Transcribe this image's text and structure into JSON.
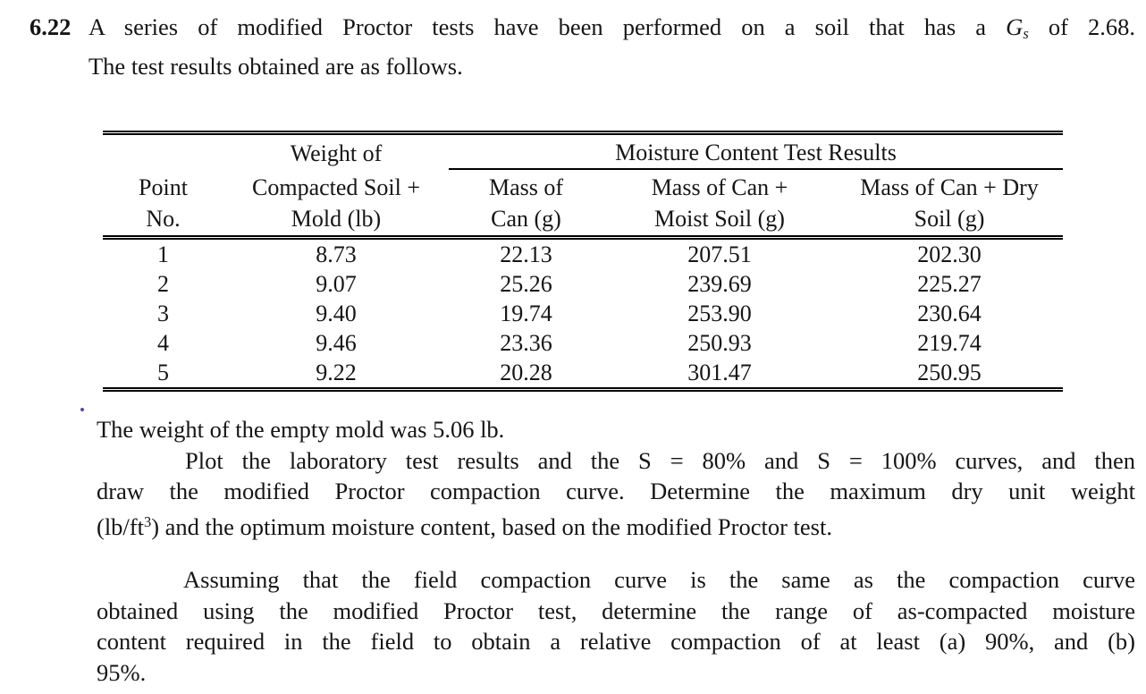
{
  "problem": {
    "number": "6.22",
    "heading_line1": {
      "pre": "A series of modified Proctor tests have been performed on a soil that has a ",
      "symbol": "G",
      "symbol_sub": "s",
      "post": " of 2.68."
    },
    "heading_line2": "The test results obtained are as follows."
  },
  "table": {
    "spanner": "Moisture Content Test Results",
    "header_row1_col2": "Weight of",
    "header_row2": [
      "Point",
      "Compacted Soil +",
      "Mass of",
      "Mass of Can +",
      "Mass of Can + Dry"
    ],
    "header_row3": [
      "No.",
      "Mold (lb)",
      "Can (g)",
      "Moist Soil (g)",
      "Soil (g)"
    ],
    "rows": [
      [
        "1",
        "8.73",
        "22.13",
        "207.51",
        "202.30"
      ],
      [
        "2",
        "9.07",
        "25.26",
        "239.69",
        "225.27"
      ],
      [
        "3",
        "9.40",
        "19.74",
        "253.90",
        "230.64"
      ],
      [
        "4",
        "9.46",
        "23.36",
        "250.93",
        "219.74"
      ],
      [
        "5",
        "9.22",
        "20.28",
        "301.47",
        "250.95"
      ]
    ]
  },
  "paragraph1": {
    "line1": "The weight of the empty mold was 5.06 lb.",
    "line2": "Plot the laboratory test results and the S = 80% and S = 100% curves, and then",
    "line3": "draw the modified Proctor compaction curve.  Determine the maximum dry unit weight",
    "line4_pre": "(lb/ft",
    "line4_sup": "3",
    "line4_post": ") and the optimum moisture content, based on the modified Proctor test."
  },
  "paragraph2": {
    "line1": "Assuming that the field compaction curve is the same as the compaction curve",
    "line2": "obtained using the modified Proctor test, determine the range of as-compacted moisture",
    "line3": "content required in the field to obtain a relative compaction of at least (a) 90%, and (b)",
    "line4": "95%."
  }
}
